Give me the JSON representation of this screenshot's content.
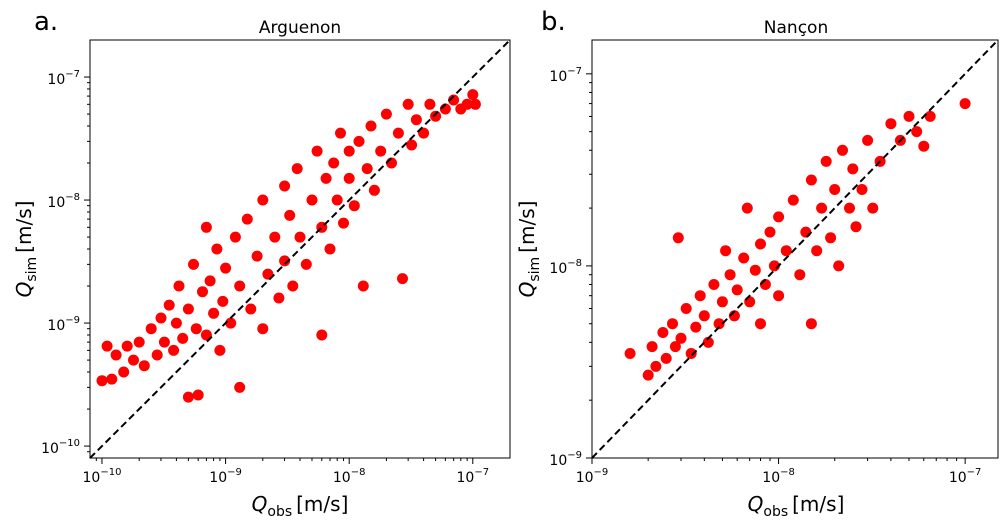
{
  "chart_data": [
    {
      "type": "scatter",
      "panel_label": "a.",
      "title": "Arguenon",
      "xlabel": {
        "symbol": "Q",
        "subscript": "obs",
        "unit": "[m/s]"
      },
      "ylabel": {
        "symbol": "Q",
        "subscript": "sim",
        "unit": "[m/s]"
      },
      "x_scale": "log",
      "y_scale": "log",
      "xlim": [
        8e-11,
        2e-07
      ],
      "ylim": [
        8e-11,
        2e-07
      ],
      "x_ticks": [
        {
          "base": "10",
          "exp": "−10",
          "value": 1e-10
        },
        {
          "base": "10",
          "exp": "−9",
          "value": 1e-09
        },
        {
          "base": "10",
          "exp": "−8",
          "value": 1e-08
        },
        {
          "base": "10",
          "exp": "−7",
          "value": 1e-07
        }
      ],
      "y_ticks": [
        {
          "base": "10",
          "exp": "−10",
          "value": 1e-10
        },
        {
          "base": "10",
          "exp": "−9",
          "value": 1e-09
        },
        {
          "base": "10",
          "exp": "−8",
          "value": 1e-08
        },
        {
          "base": "10",
          "exp": "−7",
          "value": 1e-07
        }
      ],
      "reference_line": "1:1",
      "marker_color": "#ff0000",
      "grid": false,
      "series": [
        {
          "points": [
            [
              1e-10,
              3.4e-10
            ],
            [
              1.1e-10,
              6.5e-10
            ],
            [
              1.2e-10,
              3.5e-10
            ],
            [
              1.3e-10,
              5.5e-10
            ],
            [
              1.5e-10,
              4e-10
            ],
            [
              1.6e-10,
              6.5e-10
            ],
            [
              1.8e-10,
              5e-10
            ],
            [
              2e-10,
              7e-10
            ],
            [
              2.2e-10,
              4.5e-10
            ],
            [
              2.5e-10,
              9e-10
            ],
            [
              2.8e-10,
              5.5e-10
            ],
            [
              3e-10,
              1.1e-09
            ],
            [
              3.2e-10,
              7e-10
            ],
            [
              3.5e-10,
              1.4e-09
            ],
            [
              3.8e-10,
              6e-10
            ],
            [
              4e-10,
              1e-09
            ],
            [
              4.2e-10,
              2e-09
            ],
            [
              4.5e-10,
              7.5e-10
            ],
            [
              5e-10,
              2.5e-10
            ],
            [
              5e-10,
              1.3e-09
            ],
            [
              5.5e-10,
              3e-09
            ],
            [
              5.8e-10,
              9e-10
            ],
            [
              6e-10,
              2.6e-10
            ],
            [
              6.5e-10,
              1.8e-09
            ],
            [
              7e-10,
              6e-09
            ],
            [
              7e-10,
              8e-10
            ],
            [
              7.5e-10,
              2.2e-09
            ],
            [
              8e-10,
              1.2e-09
            ],
            [
              8.5e-10,
              4e-09
            ],
            [
              9e-10,
              6e-10
            ],
            [
              9.5e-10,
              1.5e-09
            ],
            [
              1e-09,
              2.8e-09
            ],
            [
              1.1e-09,
              1e-09
            ],
            [
              1.2e-09,
              5e-09
            ],
            [
              1.3e-09,
              3e-10
            ],
            [
              1.3e-09,
              2e-09
            ],
            [
              1.5e-09,
              7e-09
            ],
            [
              1.6e-09,
              1.3e-09
            ],
            [
              1.8e-09,
              3.5e-09
            ],
            [
              2e-09,
              9e-10
            ],
            [
              2e-09,
              1e-08
            ],
            [
              2.2e-09,
              2.5e-09
            ],
            [
              2.5e-09,
              5e-09
            ],
            [
              2.7e-09,
              1.6e-09
            ],
            [
              3e-09,
              1.3e-08
            ],
            [
              3e-09,
              3.2e-09
            ],
            [
              3.3e-09,
              7.5e-09
            ],
            [
              3.5e-09,
              2e-09
            ],
            [
              3.8e-09,
              1.8e-08
            ],
            [
              4e-09,
              5e-09
            ],
            [
              4.5e-09,
              3e-09
            ],
            [
              5e-09,
              1e-08
            ],
            [
              5.5e-09,
              2.5e-08
            ],
            [
              6e-09,
              6e-09
            ],
            [
              6e-09,
              8e-10
            ],
            [
              6.5e-09,
              1.5e-08
            ],
            [
              7e-09,
              4e-09
            ],
            [
              7.5e-09,
              2e-08
            ],
            [
              8e-09,
              1e-08
            ],
            [
              8.5e-09,
              3.5e-08
            ],
            [
              9e-09,
              6.5e-09
            ],
            [
              1e-08,
              1.5e-08
            ],
            [
              1e-08,
              2.5e-08
            ],
            [
              1.1e-08,
              9e-09
            ],
            [
              1.2e-08,
              3e-08
            ],
            [
              1.3e-08,
              2e-09
            ],
            [
              1.4e-08,
              1.8e-08
            ],
            [
              1.5e-08,
              4e-08
            ],
            [
              1.6e-08,
              1.2e-08
            ],
            [
              1.8e-08,
              2.5e-08
            ],
            [
              2e-08,
              5e-08
            ],
            [
              2.2e-08,
              2e-08
            ],
            [
              2.5e-08,
              3.5e-08
            ],
            [
              2.7e-08,
              2.3e-09
            ],
            [
              3e-08,
              6e-08
            ],
            [
              3.2e-08,
              2.8e-08
            ],
            [
              3.5e-08,
              4.5e-08
            ],
            [
              4e-08,
              3.5e-08
            ],
            [
              4.5e-08,
              6e-08
            ],
            [
              5e-08,
              4.8e-08
            ],
            [
              6e-08,
              5.5e-08
            ],
            [
              7e-08,
              6.5e-08
            ],
            [
              8e-08,
              5.5e-08
            ],
            [
              9e-08,
              6e-08
            ],
            [
              1e-07,
              7.2e-08
            ],
            [
              1.05e-07,
              6e-08
            ]
          ]
        }
      ]
    },
    {
      "type": "scatter",
      "panel_label": "b.",
      "title": "Nançon",
      "xlabel": {
        "symbol": "Q",
        "subscript": "obs",
        "unit": "[m/s]"
      },
      "ylabel": {
        "symbol": "Q",
        "subscript": "sim",
        "unit": "[m/s]"
      },
      "x_scale": "log",
      "y_scale": "log",
      "xlim": [
        1e-09,
        1.5e-07
      ],
      "ylim": [
        1e-09,
        1.5e-07
      ],
      "x_ticks": [
        {
          "base": "10",
          "exp": "−9",
          "value": 1e-09
        },
        {
          "base": "10",
          "exp": "−8",
          "value": 1e-08
        },
        {
          "base": "10",
          "exp": "−7",
          "value": 1e-07
        }
      ],
      "y_ticks": [
        {
          "base": "10",
          "exp": "−9",
          "value": 1e-09
        },
        {
          "base": "10",
          "exp": "−8",
          "value": 1e-08
        },
        {
          "base": "10",
          "exp": "−7",
          "value": 1e-07
        }
      ],
      "reference_line": "1:1",
      "marker_color": "#ff0000",
      "grid": false,
      "series": [
        {
          "points": [
            [
              1.6e-09,
              3.5e-09
            ],
            [
              2e-09,
              2.7e-09
            ],
            [
              2.1e-09,
              3.8e-09
            ],
            [
              2.2e-09,
              3e-09
            ],
            [
              2.4e-09,
              4.5e-09
            ],
            [
              2.5e-09,
              3.3e-09
            ],
            [
              2.7e-09,
              5e-09
            ],
            [
              2.8e-09,
              3.8e-09
            ],
            [
              2.9e-09,
              1.4e-08
            ],
            [
              3e-09,
              4.2e-09
            ],
            [
              3.2e-09,
              6e-09
            ],
            [
              3.4e-09,
              3.5e-09
            ],
            [
              3.6e-09,
              4.8e-09
            ],
            [
              3.8e-09,
              7e-09
            ],
            [
              4e-09,
              5.5e-09
            ],
            [
              4.2e-09,
              4e-09
            ],
            [
              4.5e-09,
              8e-09
            ],
            [
              4.8e-09,
              5e-09
            ],
            [
              5e-09,
              6.5e-09
            ],
            [
              5.2e-09,
              1.2e-08
            ],
            [
              5.5e-09,
              9e-09
            ],
            [
              5.8e-09,
              5.5e-09
            ],
            [
              6e-09,
              7.5e-09
            ],
            [
              6.5e-09,
              1.1e-08
            ],
            [
              6.8e-09,
              2e-08
            ],
            [
              7e-09,
              6.5e-09
            ],
            [
              7.5e-09,
              9.5e-09
            ],
            [
              8e-09,
              1.3e-08
            ],
            [
              8e-09,
              5e-09
            ],
            [
              8.5e-09,
              8e-09
            ],
            [
              9e-09,
              1.5e-08
            ],
            [
              9.5e-09,
              1e-08
            ],
            [
              1e-08,
              1.8e-08
            ],
            [
              1e-08,
              7e-09
            ],
            [
              1.1e-08,
              1.2e-08
            ],
            [
              1.2e-08,
              2.2e-08
            ],
            [
              1.3e-08,
              9e-09
            ],
            [
              1.4e-08,
              1.5e-08
            ],
            [
              1.5e-08,
              2.8e-08
            ],
            [
              1.5e-08,
              5e-09
            ],
            [
              1.6e-08,
              1.2e-08
            ],
            [
              1.7e-08,
              2e-08
            ],
            [
              1.8e-08,
              3.5e-08
            ],
            [
              1.9e-08,
              1.4e-08
            ],
            [
              2e-08,
              2.5e-08
            ],
            [
              2.1e-08,
              1e-08
            ],
            [
              2.2e-08,
              4e-08
            ],
            [
              2.4e-08,
              2e-08
            ],
            [
              2.5e-08,
              3.2e-08
            ],
            [
              2.6e-08,
              1.6e-08
            ],
            [
              2.8e-08,
              2.5e-08
            ],
            [
              3e-08,
              4.5e-08
            ],
            [
              3.2e-08,
              2e-08
            ],
            [
              3.5e-08,
              3.5e-08
            ],
            [
              4e-08,
              5.5e-08
            ],
            [
              4.5e-08,
              4.5e-08
            ],
            [
              5e-08,
              6e-08
            ],
            [
              5.5e-08,
              5e-08
            ],
            [
              6e-08,
              4.2e-08
            ],
            [
              6.5e-08,
              6e-08
            ],
            [
              1e-07,
              7e-08
            ]
          ]
        }
      ]
    }
  ]
}
